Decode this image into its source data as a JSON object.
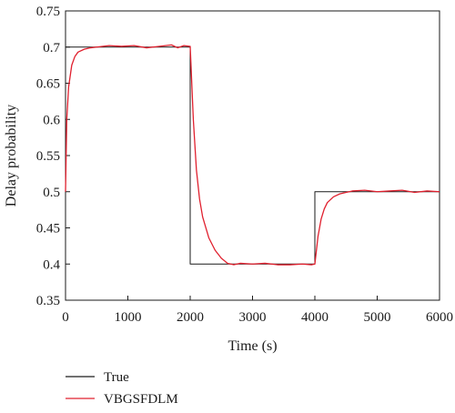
{
  "chart_data": {
    "type": "line",
    "title": "",
    "xlabel": "Time (s)",
    "ylabel": "Delay probability",
    "xlim": [
      0,
      6000
    ],
    "ylim": [
      0.35,
      0.75
    ],
    "x_ticks": [
      "0",
      "1000",
      "2000",
      "3000",
      "4000",
      "5000",
      "6000"
    ],
    "y_ticks": [
      "0.35",
      "0.4",
      "0.45",
      "0.5",
      "0.55",
      "0.6",
      "0.65",
      "0.7",
      "0.75"
    ],
    "grid": false,
    "legend_position": "bottom",
    "series": [
      {
        "name": "True",
        "color": "#1a1a1a",
        "style": "step",
        "x": [
          0,
          2000,
          2000,
          4000,
          4000,
          6000
        ],
        "y": [
          0.7,
          0.7,
          0.4,
          0.4,
          0.5,
          0.5
        ]
      },
      {
        "name": "VBGSFDLM",
        "color": "#e0202e",
        "style": "line",
        "x": [
          0,
          20,
          50,
          100,
          150,
          200,
          300,
          400,
          500,
          700,
          900,
          1100,
          1300,
          1500,
          1700,
          1800,
          1900,
          2000,
          2050,
          2100,
          2150,
          2200,
          2300,
          2400,
          2500,
          2600,
          2700,
          2800,
          3000,
          3200,
          3400,
          3600,
          3800,
          3950,
          4000,
          4050,
          4100,
          4150,
          4200,
          4300,
          4400,
          4500,
          4600,
          4800,
          5000,
          5200,
          5400,
          5600,
          5800,
          6000
        ],
        "y": [
          0.5,
          0.6,
          0.645,
          0.675,
          0.687,
          0.693,
          0.697,
          0.699,
          0.7,
          0.702,
          0.701,
          0.702,
          0.699,
          0.701,
          0.703,
          0.699,
          0.702,
          0.701,
          0.6,
          0.53,
          0.49,
          0.465,
          0.436,
          0.419,
          0.408,
          0.401,
          0.399,
          0.401,
          0.4,
          0.401,
          0.399,
          0.399,
          0.4,
          0.399,
          0.4,
          0.438,
          0.462,
          0.476,
          0.485,
          0.493,
          0.497,
          0.499,
          0.501,
          0.502,
          0.5,
          0.501,
          0.502,
          0.499,
          0.501,
          0.5
        ]
      }
    ]
  }
}
